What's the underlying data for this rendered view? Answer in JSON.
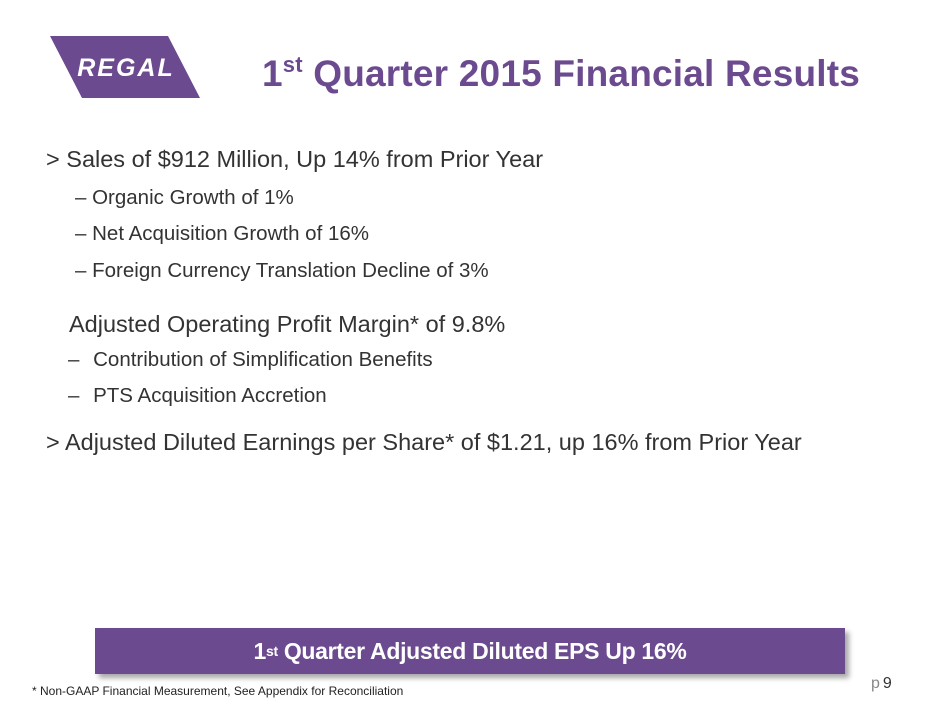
{
  "logo": {
    "text": "REGAL",
    "color": "#6b4a8f"
  },
  "title": {
    "sup": "st",
    "num": "1",
    "rest": " Quarter 2015 Financial Results",
    "color": "#6b4a8f"
  },
  "bullets": {
    "b1": {
      "marker": ">",
      "text": "Sales of $912 Million, Up 14% from Prior Year"
    },
    "b1_sub": [
      {
        "marker": "–",
        "text": "Organic Growth of 1%"
      },
      {
        "marker": "–",
        "text": "Net Acquisition Growth of 16%"
      },
      {
        "marker": "–",
        "text": "Foreign Currency Translation Decline of 3%"
      }
    ],
    "b2": {
      "text": "Adjusted Operating Profit Margin* of 9.8%"
    },
    "b2_sub": [
      {
        "marker": "–",
        "text": "Contribution of Simplification Benefits"
      },
      {
        "marker": "–",
        "text": "PTS Acquisition Accretion"
      }
    ],
    "b3": {
      "marker": ">",
      "text": "Adjusted Diluted Earnings per Share* of $1.21, up 16% from Prior Year"
    }
  },
  "callout": {
    "num": "1",
    "sup": "st",
    "text": "Quarter Adjusted Diluted EPS Up 16%",
    "color": "#6b4a8f"
  },
  "footnote": {
    "text": "*  Non-GAAP Financial Measurement, See Appendix for Reconciliation"
  },
  "page": {
    "prefix": "p",
    "number": "9"
  }
}
